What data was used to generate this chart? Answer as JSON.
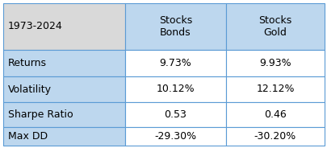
{
  "title_cell": "1973-2024",
  "col_headers": [
    "Stocks\nBonds",
    "Stocks\nGold"
  ],
  "row_labels": [
    "Returns",
    "Volatility",
    "Sharpe Ratio",
    "Max DD"
  ],
  "col1_values": [
    "9.73%",
    "10.12%",
    "0.53",
    "-29.30%"
  ],
  "col2_values": [
    "9.93%",
    "12.12%",
    "0.46",
    "-30.20%"
  ],
  "header_bg": "#BDD7EE",
  "label_bg": "#BDD7EE",
  "title_bg": "#D9D9D9",
  "data_bg": "#FFFFFF",
  "border_color": "#5B9BD5",
  "text_color": "#000000",
  "header_fontsize": 9,
  "data_fontsize": 9,
  "fig_width": 4.06,
  "fig_height": 1.84,
  "dpi": 100
}
